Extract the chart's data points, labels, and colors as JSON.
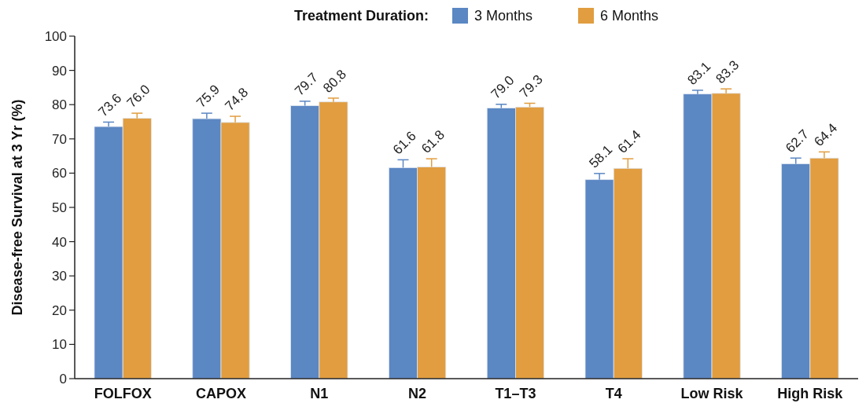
{
  "chart_data": {
    "type": "bar",
    "ylabel": "Disease-free Survival at 3 Yr (%)",
    "legend_title": "Treatment Duration:",
    "legend": "top",
    "categories": [
      "FOLFOX",
      "CAPOX",
      "N1",
      "N2",
      "T1–T3",
      "T4",
      "Low Risk",
      "High Risk"
    ],
    "series": [
      {
        "name": "3 Months",
        "color": "#5b87c3",
        "values": [
          73.6,
          75.9,
          79.7,
          61.6,
          79.0,
          58.1,
          83.1,
          62.7
        ],
        "value_labels": [
          "73.6",
          "75.9",
          "79.7",
          "61.6",
          "79.0",
          "58.1",
          "83.1",
          "62.7"
        ],
        "errors": [
          [
            73.6,
            74.9
          ],
          [
            75.9,
            77.5
          ],
          [
            79.7,
            81.0
          ],
          [
            61.6,
            63.9
          ],
          [
            79.0,
            80.1
          ],
          [
            58.1,
            59.9
          ],
          [
            83.1,
            84.2
          ],
          [
            62.7,
            64.4
          ]
        ]
      },
      {
        "name": "6 Months",
        "color": "#e19d40",
        "values": [
          76.0,
          74.8,
          80.8,
          61.8,
          79.3,
          61.4,
          83.3,
          64.4
        ],
        "value_labels": [
          "76.0",
          "74.8",
          "80.8",
          "61.8",
          "79.3",
          "61.4",
          "83.3",
          "64.4"
        ],
        "errors": [
          [
            76.0,
            77.5
          ],
          [
            74.8,
            76.6
          ],
          [
            80.8,
            81.9
          ],
          [
            61.8,
            64.2
          ],
          [
            79.3,
            80.4
          ],
          [
            61.4,
            64.2
          ],
          [
            83.3,
            84.6
          ],
          [
            64.4,
            66.2
          ]
        ]
      }
    ],
    "ylim": [
      0,
      100
    ],
    "yticks": [
      0,
      10,
      20,
      30,
      40,
      50,
      60,
      70,
      80,
      90,
      100
    ]
  }
}
